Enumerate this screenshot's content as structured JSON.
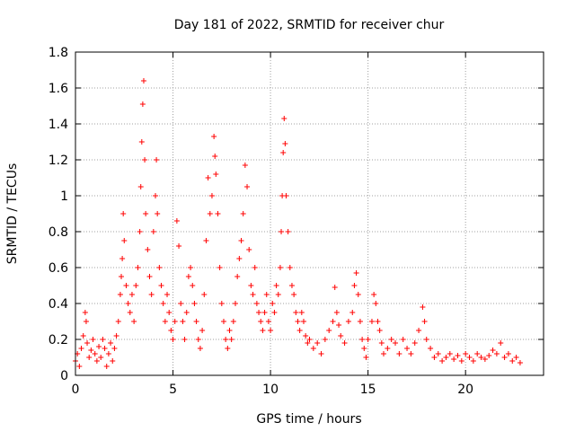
{
  "chart_data": {
    "type": "scatter",
    "title": "Day 181 of 2022, SRMTID for receiver chur",
    "xlabel": "GPS time / hours",
    "ylabel": "SRMTID / TECUs",
    "xlim": [
      0,
      24
    ],
    "ylim": [
      0,
      1.8
    ],
    "xticks": [
      0,
      5,
      10,
      15,
      20
    ],
    "yticks": [
      0,
      0.2,
      0.4,
      0.6,
      0.8,
      1,
      1.2,
      1.4,
      1.6,
      1.8
    ],
    "xtick_labels": [
      "0",
      "5",
      "10",
      "15",
      "20"
    ],
    "ytick_labels": [
      "0",
      "0.2",
      "0.4",
      "0.6",
      "0.8",
      "1",
      "1.2",
      "1.4",
      "1.6",
      "1.8"
    ],
    "grid": true,
    "marker": "+",
    "marker_color": "#ff0000",
    "series": [
      {
        "name": "SRMTID",
        "points": [
          [
            0.0,
            0.08
          ],
          [
            0.1,
            0.12
          ],
          [
            0.2,
            0.05
          ],
          [
            0.3,
            0.15
          ],
          [
            0.4,
            0.22
          ],
          [
            0.5,
            0.35
          ],
          [
            0.55,
            0.3
          ],
          [
            0.6,
            0.18
          ],
          [
            0.7,
            0.1
          ],
          [
            0.8,
            0.14
          ],
          [
            0.9,
            0.2
          ],
          [
            1.0,
            0.12
          ],
          [
            1.1,
            0.08
          ],
          [
            1.2,
            0.16
          ],
          [
            1.3,
            0.1
          ],
          [
            1.4,
            0.2
          ],
          [
            1.5,
            0.15
          ],
          [
            1.6,
            0.05
          ],
          [
            1.7,
            0.12
          ],
          [
            1.8,
            0.18
          ],
          [
            1.9,
            0.08
          ],
          [
            2.0,
            0.15
          ],
          [
            2.1,
            0.22
          ],
          [
            2.2,
            0.3
          ],
          [
            2.3,
            0.45
          ],
          [
            2.35,
            0.55
          ],
          [
            2.4,
            0.65
          ],
          [
            2.45,
            0.9
          ],
          [
            2.5,
            0.75
          ],
          [
            2.6,
            0.5
          ],
          [
            2.7,
            0.4
          ],
          [
            2.8,
            0.35
          ],
          [
            2.9,
            0.45
          ],
          [
            3.0,
            0.3
          ],
          [
            3.1,
            0.5
          ],
          [
            3.2,
            0.6
          ],
          [
            3.3,
            0.8
          ],
          [
            3.35,
            1.05
          ],
          [
            3.4,
            1.3
          ],
          [
            3.45,
            1.51
          ],
          [
            3.5,
            1.64
          ],
          [
            3.55,
            1.2
          ],
          [
            3.6,
            0.9
          ],
          [
            3.7,
            0.7
          ],
          [
            3.8,
            0.55
          ],
          [
            3.9,
            0.45
          ],
          [
            4.0,
            0.8
          ],
          [
            4.1,
            1.0
          ],
          [
            4.15,
            1.2
          ],
          [
            4.2,
            0.9
          ],
          [
            4.3,
            0.6
          ],
          [
            4.4,
            0.5
          ],
          [
            4.5,
            0.4
          ],
          [
            4.6,
            0.3
          ],
          [
            4.7,
            0.45
          ],
          [
            4.8,
            0.35
          ],
          [
            4.9,
            0.25
          ],
          [
            5.0,
            0.2
          ],
          [
            5.1,
            0.3
          ],
          [
            5.2,
            0.86
          ],
          [
            5.3,
            0.72
          ],
          [
            5.4,
            0.4
          ],
          [
            5.5,
            0.3
          ],
          [
            5.6,
            0.2
          ],
          [
            5.7,
            0.35
          ],
          [
            5.8,
            0.55
          ],
          [
            5.9,
            0.6
          ],
          [
            6.0,
            0.5
          ],
          [
            6.1,
            0.4
          ],
          [
            6.2,
            0.3
          ],
          [
            6.3,
            0.2
          ],
          [
            6.4,
            0.15
          ],
          [
            6.5,
            0.25
          ],
          [
            6.6,
            0.45
          ],
          [
            6.7,
            0.75
          ],
          [
            6.8,
            1.1
          ],
          [
            6.9,
            0.9
          ],
          [
            7.0,
            1.0
          ],
          [
            7.1,
            1.33
          ],
          [
            7.15,
            1.22
          ],
          [
            7.2,
            1.12
          ],
          [
            7.3,
            0.9
          ],
          [
            7.4,
            0.6
          ],
          [
            7.5,
            0.4
          ],
          [
            7.6,
            0.3
          ],
          [
            7.7,
            0.2
          ],
          [
            7.8,
            0.15
          ],
          [
            7.9,
            0.25
          ],
          [
            8.0,
            0.2
          ],
          [
            8.1,
            0.3
          ],
          [
            8.2,
            0.4
          ],
          [
            8.3,
            0.55
          ],
          [
            8.4,
            0.65
          ],
          [
            8.5,
            0.75
          ],
          [
            8.6,
            0.9
          ],
          [
            8.7,
            1.17
          ],
          [
            8.8,
            1.05
          ],
          [
            8.9,
            0.7
          ],
          [
            9.0,
            0.5
          ],
          [
            9.1,
            0.45
          ],
          [
            9.2,
            0.6
          ],
          [
            9.3,
            0.4
          ],
          [
            9.4,
            0.35
          ],
          [
            9.5,
            0.3
          ],
          [
            9.6,
            0.25
          ],
          [
            9.7,
            0.35
          ],
          [
            9.8,
            0.45
          ],
          [
            9.9,
            0.3
          ],
          [
            10.0,
            0.25
          ],
          [
            10.1,
            0.4
          ],
          [
            10.2,
            0.35
          ],
          [
            10.3,
            0.5
          ],
          [
            10.4,
            0.45
          ],
          [
            10.5,
            0.6
          ],
          [
            10.55,
            0.8
          ],
          [
            10.6,
            1.0
          ],
          [
            10.65,
            1.24
          ],
          [
            10.7,
            1.43
          ],
          [
            10.75,
            1.29
          ],
          [
            10.8,
            1.0
          ],
          [
            10.9,
            0.8
          ],
          [
            11.0,
            0.6
          ],
          [
            11.1,
            0.5
          ],
          [
            11.2,
            0.45
          ],
          [
            11.3,
            0.35
          ],
          [
            11.4,
            0.3
          ],
          [
            11.5,
            0.25
          ],
          [
            11.6,
            0.35
          ],
          [
            11.7,
            0.3
          ],
          [
            11.8,
            0.22
          ],
          [
            11.9,
            0.18
          ],
          [
            12.0,
            0.2
          ],
          [
            12.2,
            0.15
          ],
          [
            12.4,
            0.18
          ],
          [
            12.6,
            0.12
          ],
          [
            12.8,
            0.2
          ],
          [
            13.0,
            0.25
          ],
          [
            13.2,
            0.3
          ],
          [
            13.3,
            0.49
          ],
          [
            13.4,
            0.35
          ],
          [
            13.5,
            0.28
          ],
          [
            13.6,
            0.22
          ],
          [
            13.8,
            0.18
          ],
          [
            14.0,
            0.3
          ],
          [
            14.2,
            0.35
          ],
          [
            14.3,
            0.5
          ],
          [
            14.4,
            0.57
          ],
          [
            14.5,
            0.45
          ],
          [
            14.6,
            0.3
          ],
          [
            14.7,
            0.2
          ],
          [
            14.8,
            0.15
          ],
          [
            14.9,
            0.1
          ],
          [
            15.0,
            0.2
          ],
          [
            15.2,
            0.3
          ],
          [
            15.3,
            0.45
          ],
          [
            15.4,
            0.4
          ],
          [
            15.5,
            0.3
          ],
          [
            15.6,
            0.25
          ],
          [
            15.7,
            0.18
          ],
          [
            15.8,
            0.12
          ],
          [
            16.0,
            0.15
          ],
          [
            16.2,
            0.2
          ],
          [
            16.4,
            0.18
          ],
          [
            16.6,
            0.12
          ],
          [
            16.8,
            0.2
          ],
          [
            17.0,
            0.15
          ],
          [
            17.2,
            0.12
          ],
          [
            17.4,
            0.18
          ],
          [
            17.6,
            0.25
          ],
          [
            17.8,
            0.38
          ],
          [
            17.9,
            0.3
          ],
          [
            18.0,
            0.2
          ],
          [
            18.2,
            0.15
          ],
          [
            18.4,
            0.1
          ],
          [
            18.6,
            0.12
          ],
          [
            18.8,
            0.08
          ],
          [
            19.0,
            0.1
          ],
          [
            19.2,
            0.12
          ],
          [
            19.4,
            0.09
          ],
          [
            19.6,
            0.11
          ],
          [
            19.8,
            0.08
          ],
          [
            20.0,
            0.12
          ],
          [
            20.2,
            0.1
          ],
          [
            20.4,
            0.08
          ],
          [
            20.6,
            0.12
          ],
          [
            20.8,
            0.1
          ],
          [
            21.0,
            0.09
          ],
          [
            21.2,
            0.11
          ],
          [
            21.4,
            0.14
          ],
          [
            21.6,
            0.12
          ],
          [
            21.8,
            0.18
          ],
          [
            22.0,
            0.1
          ],
          [
            22.2,
            0.12
          ],
          [
            22.4,
            0.08
          ],
          [
            22.6,
            0.1
          ],
          [
            22.8,
            0.07
          ]
        ]
      }
    ]
  }
}
